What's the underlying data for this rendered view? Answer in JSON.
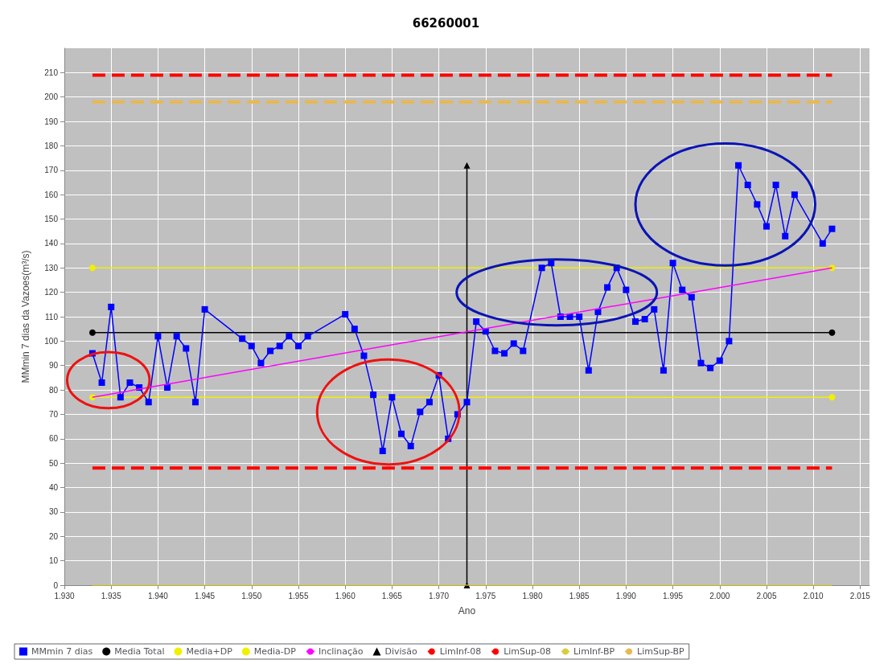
{
  "chart_data": {
    "type": "line",
    "title": "66260001",
    "xlabel": "Ano",
    "ylabel": "MMmin 7 dias da Vazoes(m³/s)",
    "xlim": [
      1930,
      2016
    ],
    "xticks": [
      {
        "value": 1930,
        "label": "1.930"
      },
      {
        "value": 1935,
        "label": "1.935"
      },
      {
        "value": 1940,
        "label": "1.940"
      },
      {
        "value": 1945,
        "label": "1.945"
      },
      {
        "value": 1950,
        "label": "1.950"
      },
      {
        "value": 1955,
        "label": "1.955"
      },
      {
        "value": 1960,
        "label": "1.960"
      },
      {
        "value": 1965,
        "label": "1.965"
      },
      {
        "value": 1970,
        "label": "1.970"
      },
      {
        "value": 1975,
        "label": "1.975"
      },
      {
        "value": 1980,
        "label": "1.980"
      },
      {
        "value": 1985,
        "label": "1.985"
      },
      {
        "value": 1990,
        "label": "1.990"
      },
      {
        "value": 1995,
        "label": "1.995"
      },
      {
        "value": 2000,
        "label": "2.000"
      },
      {
        "value": 2005,
        "label": "2.005"
      },
      {
        "value": 2010,
        "label": "2.010"
      },
      {
        "value": 2015,
        "label": "2.015"
      }
    ],
    "ylim": [
      0,
      220
    ],
    "yticks": [
      0,
      10,
      20,
      30,
      40,
      50,
      60,
      70,
      80,
      90,
      100,
      110,
      120,
      130,
      140,
      150,
      160,
      170,
      180,
      190,
      200,
      210
    ],
    "grid": true,
    "legend": "bottom",
    "series": [
      {
        "name": "MMmin 7 dias",
        "color": "#0000ff",
        "marker": "square",
        "line_style": "solid",
        "x": [
          1933,
          1934,
          1935,
          1936,
          1937,
          1938,
          1939,
          1940,
          1941,
          1942,
          1943,
          1944,
          1945,
          1949,
          1950,
          1951,
          1952,
          1953,
          1954,
          1955,
          1956,
          1960,
          1961,
          1962,
          1963,
          1964,
          1965,
          1966,
          1967,
          1968,
          1969,
          1970,
          1971,
          1972,
          1973,
          1974,
          1975,
          1976,
          1977,
          1978,
          1979,
          1981,
          1982,
          1983,
          1984,
          1985,
          1986,
          1987,
          1988,
          1989,
          1990,
          1991,
          1992,
          1993,
          1994,
          1995,
          1996,
          1997,
          1998,
          1999,
          2000,
          2001,
          2002,
          2003,
          2004,
          2005,
          2006,
          2007,
          2008,
          2011,
          2012
        ],
        "values": [
          95,
          83,
          114,
          77,
          83,
          81,
          75,
          102,
          81,
          102,
          97,
          75,
          113,
          101,
          98,
          91,
          96,
          98,
          102,
          98,
          102,
          111,
          105,
          94,
          78,
          55,
          77,
          62,
          57,
          71,
          75,
          86,
          60,
          70,
          75,
          108,
          104,
          96,
          95,
          99,
          96,
          130,
          132,
          110,
          110,
          110,
          88,
          112,
          122,
          130,
          121,
          108,
          109,
          113,
          88,
          132,
          121,
          118,
          91,
          89,
          92,
          100,
          172,
          164,
          156,
          147,
          164,
          143,
          160,
          140,
          146
        ]
      },
      {
        "name": "Media Total",
        "color": "#000000",
        "marker": "circle",
        "line_style": "solid",
        "x": [
          1933,
          2012
        ],
        "values": [
          103.5,
          103.5
        ]
      },
      {
        "name": "Media+DP",
        "color": "#f0f000",
        "marker": "circle",
        "line_style": "solid",
        "x": [
          1933,
          2012
        ],
        "values": [
          130,
          130
        ]
      },
      {
        "name": "Media-DP",
        "color": "#f0f000",
        "marker": "circle",
        "line_style": "solid",
        "x": [
          1933,
          2012
        ],
        "values": [
          77,
          77
        ]
      },
      {
        "name": "Inclinação",
        "color": "#ff00ff",
        "marker": "none",
        "line_style": "solid",
        "x": [
          1933,
          2012
        ],
        "values": [
          77,
          130
        ]
      },
      {
        "name": "Divisão",
        "color": "#000000",
        "marker": "triangle",
        "line_style": "solid",
        "x": [
          1973,
          1973
        ],
        "values": [
          0,
          172
        ]
      },
      {
        "name": "LimInf-08",
        "color": "#ff0000",
        "marker": "none",
        "line_style": "dashed",
        "x": [
          1933,
          2012
        ],
        "values": [
          48,
          48
        ]
      },
      {
        "name": "LimSup-08",
        "color": "#ff0000",
        "marker": "none",
        "line_style": "dashed",
        "x": [
          1933,
          2012
        ],
        "values": [
          209,
          209
        ]
      },
      {
        "name": "LimInf-BP",
        "color": "#d8cc40",
        "marker": "none",
        "line_style": "solid",
        "x": [
          1933,
          2012
        ],
        "values": [
          0,
          0
        ]
      },
      {
        "name": "LimSup-BP",
        "color": "#e8b850",
        "marker": "none",
        "line_style": "dashed",
        "x": [
          1933,
          2012
        ],
        "values": [
          198,
          198
        ]
      }
    ]
  }
}
